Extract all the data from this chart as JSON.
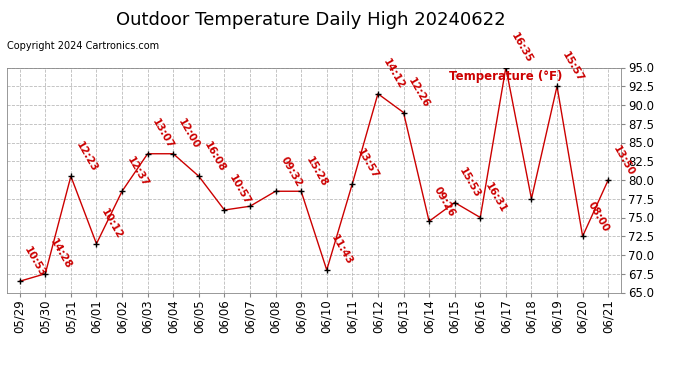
{
  "title": "Outdoor Temperature Daily High 20240622",
  "copyright": "Copyright 2024 Cartronics.com",
  "legend_label": "Temperature (°F)",
  "ylim": [
    65.0,
    95.0
  ],
  "yticks": [
    65.0,
    67.5,
    70.0,
    72.5,
    75.0,
    77.5,
    80.0,
    82.5,
    85.0,
    87.5,
    90.0,
    92.5,
    95.0
  ],
  "dates": [
    "05/29",
    "05/30",
    "05/31",
    "06/01",
    "06/02",
    "06/03",
    "06/04",
    "06/05",
    "06/06",
    "06/07",
    "06/08",
    "06/09",
    "06/10",
    "06/11",
    "06/12",
    "06/13",
    "06/14",
    "06/15",
    "06/16",
    "06/17",
    "06/18",
    "06/19",
    "06/20",
    "06/21"
  ],
  "values": [
    66.5,
    67.5,
    80.5,
    71.5,
    78.5,
    83.5,
    83.5,
    80.5,
    76.0,
    76.5,
    78.5,
    78.5,
    68.0,
    79.5,
    91.5,
    89.0,
    74.5,
    77.0,
    75.0,
    95.0,
    77.5,
    92.5,
    72.5,
    80.0
  ],
  "time_labels": [
    "10:53",
    "14:28",
    "12:23",
    "10:12",
    "12:37",
    "13:07",
    "12:00",
    "16:08",
    "10:57",
    "",
    "09:32",
    "15:28",
    "11:43",
    "13:57",
    "14:12",
    "12:26",
    "09:26",
    "15:53",
    "16:31",
    "16:35",
    "",
    "15:57",
    "08:00",
    "13:50"
  ],
  "line_color": "#cc0000",
  "marker_color": "#000000",
  "label_color": "#cc0000",
  "bg_color": "#ffffff",
  "grid_color": "#bbbbbb",
  "title_fontsize": 13,
  "label_fontsize": 7,
  "tick_fontsize": 8.5,
  "annotation_fontsize": 7.5
}
